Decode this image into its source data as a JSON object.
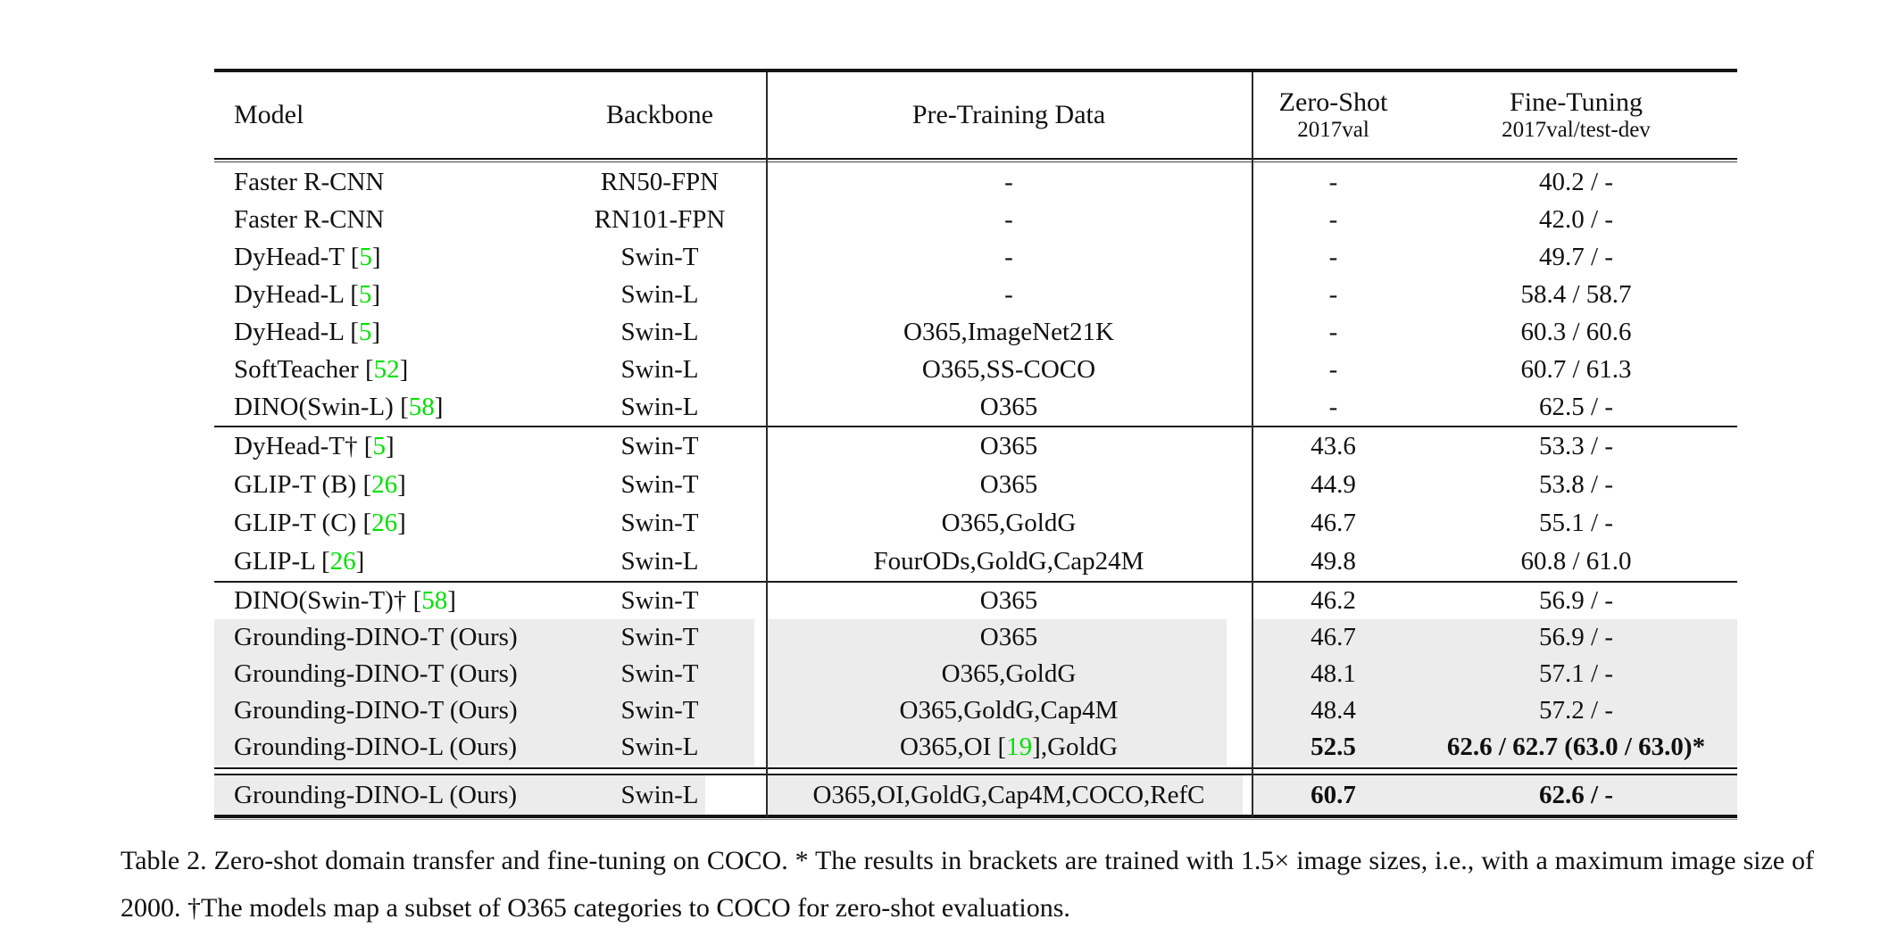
{
  "colors": {
    "citation_green": "#00e000",
    "highlight_gray": "#ececec",
    "rule_black": "#141414"
  },
  "header": {
    "model": "Model",
    "backbone": "Backbone",
    "pretrain": "Pre-Training Data",
    "zero_shot": {
      "title": "Zero-Shot",
      "subtitle": "2017val"
    },
    "fine_tuning": {
      "title": "Fine-Tuning",
      "subtitle": "2017val/test-dev"
    }
  },
  "sections": [
    {
      "rows": [
        {
          "model": "Faster R-CNN",
          "backbone": "RN50-FPN",
          "pretrain": "-",
          "zero_shot": "-",
          "fine_tuning": "40.2 / -"
        },
        {
          "model": "Faster R-CNN",
          "backbone": "RN101-FPN",
          "pretrain": "-",
          "zero_shot": "-",
          "fine_tuning": "42.0 / -"
        },
        {
          "model": "DyHead-T [5]",
          "backbone": "Swin-T",
          "pretrain": "-",
          "zero_shot": "-",
          "fine_tuning": "49.7 / -"
        },
        {
          "model": "DyHead-L [5]",
          "backbone": "Swin-L",
          "pretrain": "-",
          "zero_shot": "-",
          "fine_tuning": "58.4 / 58.7"
        },
        {
          "model": "DyHead-L [5]",
          "backbone": "Swin-L",
          "pretrain": "O365,ImageNet21K",
          "zero_shot": "-",
          "fine_tuning": "60.3 / 60.6"
        },
        {
          "model": "SoftTeacher [52]",
          "backbone": "Swin-L",
          "pretrain": "O365,SS-COCO",
          "zero_shot": "-",
          "fine_tuning": "60.7 / 61.3"
        },
        {
          "model": "DINO(Swin-L) [58]",
          "backbone": "Swin-L",
          "pretrain": "O365",
          "zero_shot": "-",
          "fine_tuning": "62.5 / -"
        }
      ]
    },
    {
      "rows": [
        {
          "model": "DyHead-T† [5]",
          "backbone": "Swin-T",
          "pretrain": "O365",
          "zero_shot": "43.6",
          "fine_tuning": "53.3 / -"
        },
        {
          "model": "GLIP-T (B) [26]",
          "backbone": "Swin-T",
          "pretrain": "O365",
          "zero_shot": "44.9",
          "fine_tuning": "53.8 / -"
        },
        {
          "model": "GLIP-T (C) [26]",
          "backbone": "Swin-T",
          "pretrain": "O365,GoldG",
          "zero_shot": "46.7",
          "fine_tuning": "55.1 / -"
        },
        {
          "model": "GLIP-L [26]",
          "backbone": "Swin-L",
          "pretrain": "FourODs,GoldG,Cap24M",
          "zero_shot": "49.8",
          "fine_tuning": "60.8 / 61.0"
        }
      ]
    },
    {
      "rows": [
        {
          "model": "DINO(Swin-T)† [58]",
          "backbone": "Swin-T",
          "pretrain": "O365",
          "zero_shot": "46.2",
          "fine_tuning": "56.9 / -"
        },
        {
          "model": "Grounding-DINO-T (Ours)",
          "backbone": "Swin-T",
          "pretrain": "O365",
          "zero_shot": "46.7",
          "fine_tuning": "56.9 / -",
          "highlight": true
        },
        {
          "model": "Grounding-DINO-T (Ours)",
          "backbone": "Swin-T",
          "pretrain": "O365,GoldG",
          "zero_shot": "48.1",
          "fine_tuning": "57.1 / -",
          "highlight": true
        },
        {
          "model": "Grounding-DINO-T (Ours)",
          "backbone": "Swin-T",
          "pretrain": "O365,GoldG,Cap4M",
          "zero_shot": "48.4",
          "fine_tuning": "57.2 / -",
          "highlight": true
        },
        {
          "model": "Grounding-DINO-L (Ours)",
          "backbone": "Swin-L",
          "pretrain": "O365,OI [19],GoldG",
          "zero_shot": "52.5",
          "fine_tuning": "62.6 / 62.7 (63.0 / 63.0)*",
          "highlight": true,
          "bold_zero_shot": true,
          "bold_fine_tuning": true
        }
      ]
    },
    {
      "rows": [
        {
          "model": "Grounding-DINO-L (Ours)",
          "backbone": "Swin-L",
          "pretrain": "O365,OI,GoldG,Cap4M,COCO,RefC",
          "zero_shot": "60.7",
          "fine_tuning": "62.6 / -",
          "highlight": true,
          "bold_zero_shot": true,
          "bold_fine_tuning": true
        }
      ]
    }
  ],
  "caption": "Table 2.  Zero-shot domain transfer and fine-tuning on COCO. * The results in brackets are trained with 1.5× image sizes, i.e., with a maximum image size of 2000. †The models map a subset of O365 categories to COCO for zero-shot evaluations."
}
